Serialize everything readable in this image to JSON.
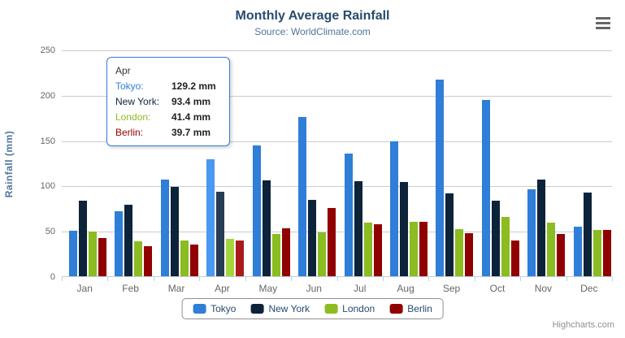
{
  "header": {
    "title": "Monthly Average Rainfall",
    "subtitle": "Source: WorldClimate.com"
  },
  "chart_data": {
    "type": "bar",
    "title": "Monthly Average Rainfall",
    "subtitle": "Source: WorldClimate.com",
    "xlabel": "",
    "ylabel": "Rainfall (mm)",
    "ylim": [
      0,
      250
    ],
    "yticks": [
      0,
      50,
      100,
      150,
      200,
      250
    ],
    "grid": true,
    "legend_position": "bottom",
    "categories": [
      "Jan",
      "Feb",
      "Mar",
      "Apr",
      "May",
      "Jun",
      "Jul",
      "Aug",
      "Sep",
      "Oct",
      "Nov",
      "Dec"
    ],
    "series": [
      {
        "name": "Tokyo",
        "color": "#2f7ed8",
        "values": [
          49.9,
          71.5,
          106.4,
          129.2,
          144.0,
          176.0,
          135.6,
          148.5,
          216.4,
          194.1,
          95.6,
          54.4
        ]
      },
      {
        "name": "New York",
        "color": "#0d233a",
        "values": [
          83.6,
          78.8,
          98.5,
          93.4,
          106.0,
          84.5,
          105.0,
          104.3,
          91.2,
          83.5,
          106.6,
          92.3
        ]
      },
      {
        "name": "London",
        "color": "#8bbc21",
        "values": [
          48.9,
          38.8,
          39.3,
          41.4,
          47.0,
          48.3,
          59.0,
          59.6,
          52.4,
          65.2,
          59.3,
          51.2
        ]
      },
      {
        "name": "Berlin",
        "color": "#910000",
        "values": [
          42.4,
          33.2,
          34.5,
          39.7,
          52.6,
          75.5,
          57.4,
          60.4,
          47.6,
          39.1,
          46.8,
          51.1
        ]
      }
    ],
    "hover_category": "Apr"
  },
  "tooltip": {
    "category": "Apr",
    "border_color": "#2f7ed8",
    "rows": [
      {
        "label": "Tokyo:",
        "value": "129.2 mm",
        "color": "#2f7ed8"
      },
      {
        "label": "New York:",
        "value": "93.4 mm",
        "color": "#0d233a"
      },
      {
        "label": "London:",
        "value": "41.4 mm",
        "color": "#8bbc21"
      },
      {
        "label": "Berlin:",
        "value": "39.7 mm",
        "color": "#910000"
      }
    ]
  },
  "icons": {
    "context_menu": "hamburger-menu-icon"
  },
  "colors": {
    "title_text": "#274b6d",
    "subtitle_text": "#4d759e",
    "axis_label_text": "#666666",
    "gridline": "#cccccc",
    "axis_line": "#c0d0e0",
    "legend_text": "#274b6d",
    "credits_text": "#909090"
  },
  "credits": {
    "label": "Highcharts.com"
  }
}
